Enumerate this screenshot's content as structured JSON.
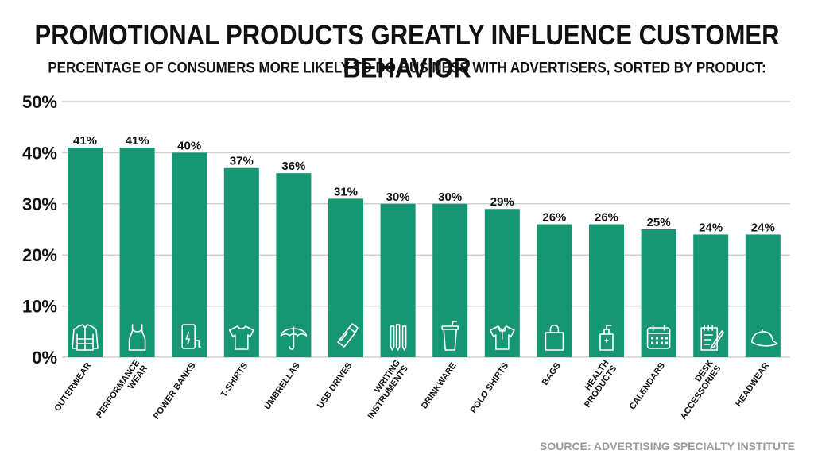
{
  "header": {
    "title": "PROMOTIONAL PRODUCTS GREATLY INFLUENCE CUSTOMER BEHAVIOR",
    "subtitle": "PERCENTAGE OF CONSUMERS MORE LIKELY TO DO BUSINESS WITH ADVERTISERS, SORTED BY PRODUCT:"
  },
  "footer": {
    "source": "SOURCE: ADVERTISING SPECIALTY INSTITUTE"
  },
  "colors": {
    "bar": "#169672",
    "grid": "#cfcfcf",
    "text": "#111111",
    "source": "#9a9a9a"
  },
  "chart_data": {
    "type": "bar",
    "categories": [
      [
        "OUTERWEAR"
      ],
      [
        "PERFORMANCE",
        "WEAR"
      ],
      [
        "POWER BANKS"
      ],
      [
        "T-SHIRTS"
      ],
      [
        "UMBRELLAS"
      ],
      [
        "USB DRIVES"
      ],
      [
        "WRITING",
        "INSTRUMENTS"
      ],
      [
        "DRINKWARE"
      ],
      [
        "POLO SHIRTS"
      ],
      [
        "BAGS"
      ],
      [
        "HEALTH",
        "PRODUCTS"
      ],
      [
        "CALENDARS"
      ],
      [
        "DESK",
        "ACCESSORIES"
      ],
      [
        "HEADWEAR"
      ]
    ],
    "values": [
      41,
      41,
      40,
      37,
      36,
      31,
      30,
      30,
      29,
      26,
      26,
      25,
      24,
      24
    ],
    "data_labels": [
      "41%",
      "41%",
      "40%",
      "37%",
      "36%",
      "31%",
      "30%",
      "30%",
      "29%",
      "26%",
      "26%",
      "25%",
      "24%",
      "24%"
    ],
    "icons": [
      "jacket-icon",
      "tank-top-icon",
      "power-bank-icon",
      "tshirt-icon",
      "umbrella-icon",
      "usb-drive-icon",
      "pens-icon",
      "tumbler-icon",
      "polo-shirt-icon",
      "bag-icon",
      "sanitizer-icon",
      "calendar-icon",
      "notepad-icon",
      "cap-icon"
    ],
    "yticks": [
      "0%",
      "10%",
      "20%",
      "30%",
      "40%",
      "50%"
    ],
    "ylim": [
      0,
      50
    ],
    "grid": true
  }
}
